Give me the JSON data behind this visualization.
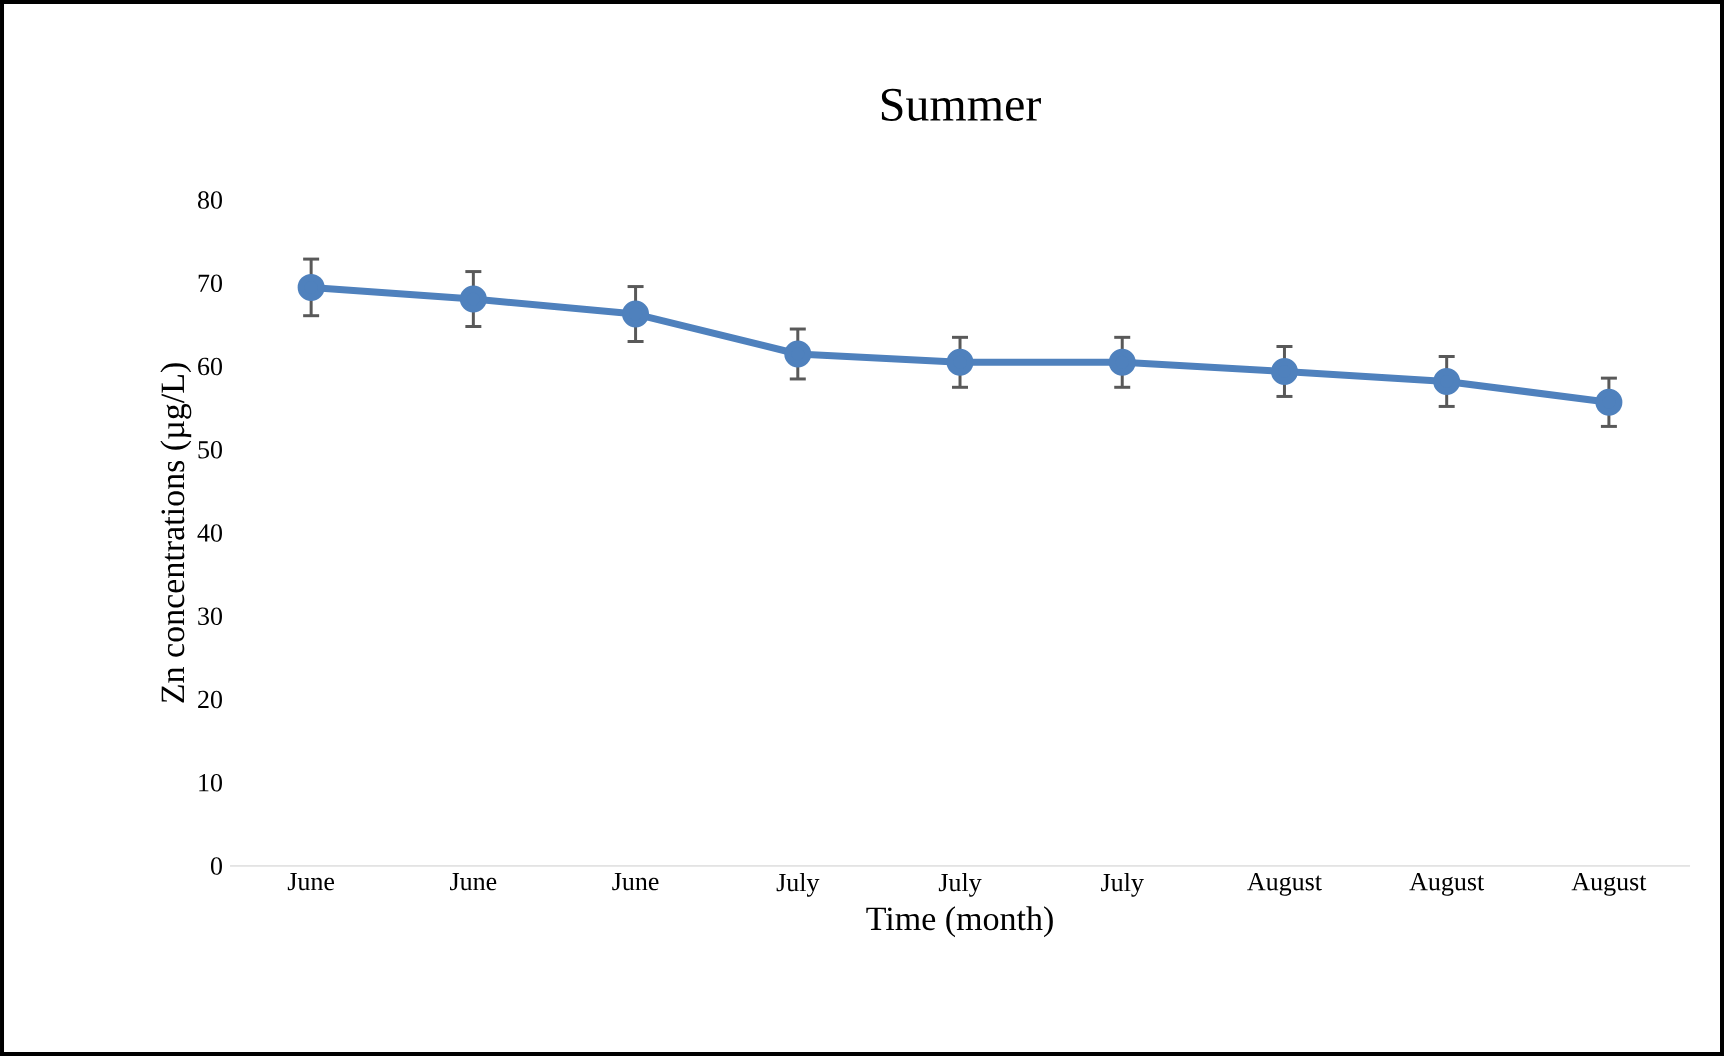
{
  "chart_data": {
    "type": "line",
    "title": "Summer",
    "xlabel": "Time (month)",
    "ylabel": "Zn concentrations (µg/L)",
    "categories": [
      "June",
      "June",
      "June",
      "July",
      "July",
      "July",
      "August",
      "August",
      "August"
    ],
    "series": [
      {
        "color": "#4f81bd",
        "values": [
          69.5,
          68.1,
          66.3,
          61.5,
          60.5,
          60.5,
          59.4,
          58.2,
          55.7
        ],
        "errors": [
          3.4,
          3.3,
          3.3,
          3.0,
          3.0,
          3.0,
          3.0,
          3.0,
          2.9
        ]
      }
    ],
    "marker": "circle",
    "ylim": [
      0,
      80
    ],
    "yticks": [
      0,
      10,
      20,
      30,
      40,
      50,
      60,
      70,
      80
    ]
  }
}
